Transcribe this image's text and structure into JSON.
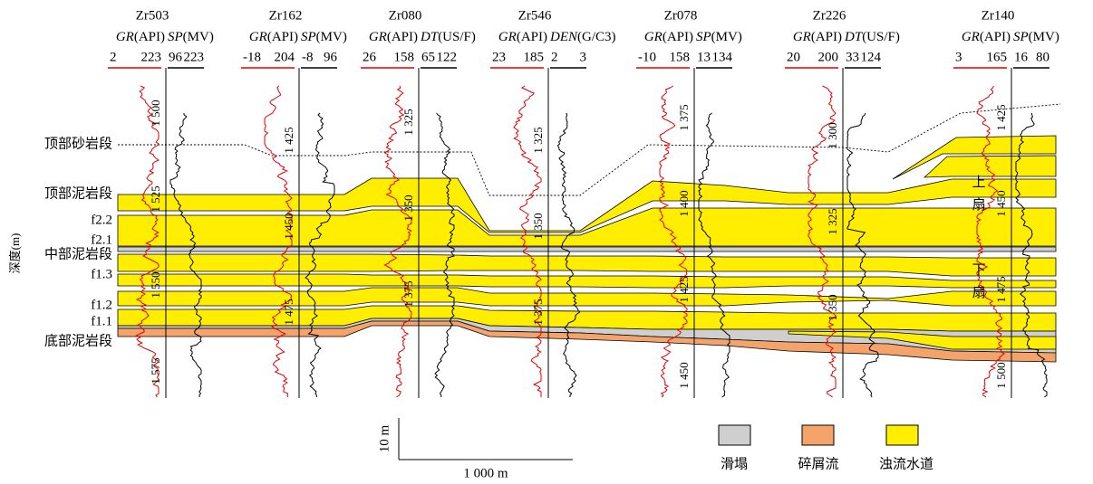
{
  "y_axis_label": "深度(m)",
  "wells": [
    {
      "name": "Zr503",
      "curves": [
        {
          "name": "GR",
          "unit": "(API)",
          "min": 2,
          "max": 223
        },
        {
          "name": "SP",
          "unit": "(MV)",
          "min": 96,
          "max": 223
        }
      ],
      "depths": [
        "1 500",
        "1 525",
        "1 550",
        "1 575"
      ]
    },
    {
      "name": "Zr162",
      "curves": [
        {
          "name": "GR",
          "unit": "(API)",
          "min": -18,
          "max": 204
        },
        {
          "name": "SP",
          "unit": "(MV)",
          "min": -8,
          "max": 96
        }
      ],
      "depths": [
        "1 425",
        "1 450",
        "1 475"
      ]
    },
    {
      "name": "Zr080",
      "curves": [
        {
          "name": "GR",
          "unit": "(API)",
          "min": 26,
          "max": 158
        },
        {
          "name": "DT",
          "unit": "(US/F)",
          "min": 65,
          "max": 122
        }
      ],
      "depths": [
        "1 325",
        "1 350",
        "1 375"
      ]
    },
    {
      "name": "Zr546",
      "curves": [
        {
          "name": "GR",
          "unit": "(API)",
          "min": 23,
          "max": 185
        },
        {
          "name": "DEN",
          "unit": "(G/C3)",
          "min": 2,
          "max": 3
        }
      ],
      "depths": [
        "1 325",
        "1 350",
        "1 375"
      ]
    },
    {
      "name": "Zr078",
      "curves": [
        {
          "name": "GR",
          "unit": "(API)",
          "min": -10,
          "max": 158
        },
        {
          "name": "SP",
          "unit": "(MV)",
          "min": 13,
          "max": 134
        }
      ],
      "depths": [
        "1 375",
        "1 400",
        "1 425",
        "1 450"
      ]
    },
    {
      "name": "Zr226",
      "curves": [
        {
          "name": "GR",
          "unit": "(API)",
          "min": 20,
          "max": 200
        },
        {
          "name": "DT",
          "unit": "(US/F)",
          "min": 33,
          "max": 124
        }
      ],
      "depths": [
        "1 300",
        "1 325",
        "1 350"
      ]
    },
    {
      "name": "Zr140",
      "curves": [
        {
          "name": "GR",
          "unit": "(API)",
          "min": 3,
          "max": 165
        },
        {
          "name": "SP",
          "unit": "(MV)",
          "min": 16,
          "max": 80
        }
      ],
      "depths": [
        "1 425",
        "1 450",
        "1 475",
        "1 500"
      ]
    }
  ],
  "intervals": [
    "顶部砂岩段",
    "顶部泥岩段",
    "f2.2",
    "f2.1",
    "中部泥岩段",
    "f1.3",
    "f1.2",
    "f1.1",
    "底部泥岩段"
  ],
  "fan_labels": [
    "上扇",
    "下扇"
  ],
  "scale_bar": {
    "vertical": "10 m",
    "horizontal": "1 000 m"
  },
  "legend": [
    {
      "label": "滑塌",
      "color": "#cfcfcf"
    },
    {
      "label": "碎屑流",
      "color": "#f4a46a"
    },
    {
      "label": "浊流水道",
      "color": "#ffee00"
    }
  ]
}
